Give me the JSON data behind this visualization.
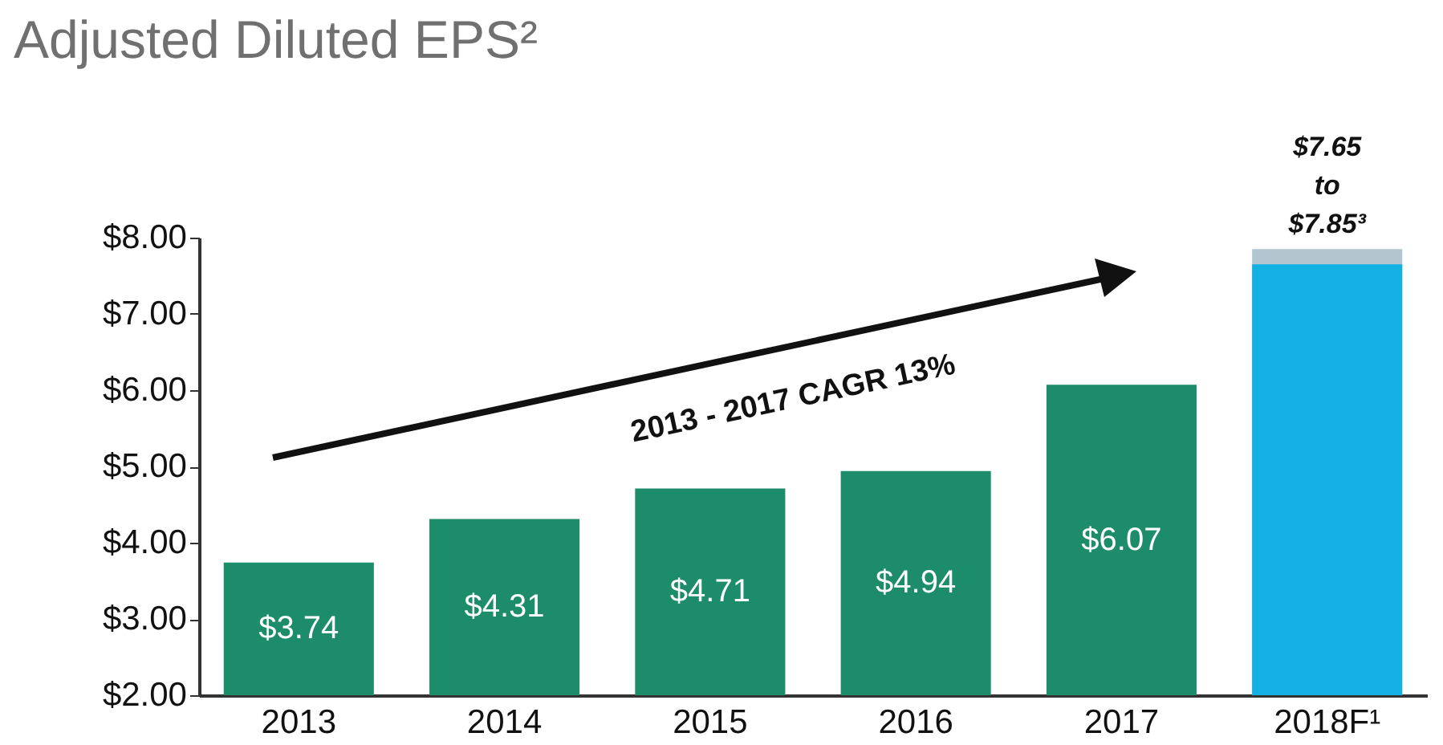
{
  "chart_data": {
    "type": "bar",
    "title": "Adjusted Diluted EPS²",
    "categories": [
      "2013",
      "2014",
      "2015",
      "2016",
      "2017",
      "2018F¹"
    ],
    "series": [
      {
        "values": [
          null,
          null,
          null,
          null,
          null,
          7.85
        ],
        "color": "#b3c5cf"
      },
      {
        "values": [
          3.74,
          4.31,
          4.71,
          4.94,
          6.07,
          7.65
        ],
        "colors": [
          "#1d8c6a",
          "#1d8c6a",
          "#1d8c6a",
          "#1d8c6a",
          "#1d8c6a",
          "#13b0e4"
        ],
        "value_labels": [
          "$3.74",
          "$4.31",
          "$4.71",
          "$4.94",
          "$6.07",
          null
        ]
      }
    ],
    "ylim": [
      2,
      8
    ],
    "yticks": [
      {
        "value": 2,
        "label": "$2.00"
      },
      {
        "value": 3,
        "label": "$3.00"
      },
      {
        "value": 4,
        "label": "$4.00"
      },
      {
        "value": 5,
        "label": "$5.00"
      },
      {
        "value": 6,
        "label": "$6.00"
      },
      {
        "value": 7,
        "label": "$7.00"
      },
      {
        "value": 8,
        "label": "$8.00"
      }
    ],
    "grid": false,
    "annotations": [
      {
        "text": "$7.65 to $7.85³",
        "x": "2018F¹",
        "y": 7.85
      },
      "2013 - 2017 CAGR 13%"
    ]
  }
}
